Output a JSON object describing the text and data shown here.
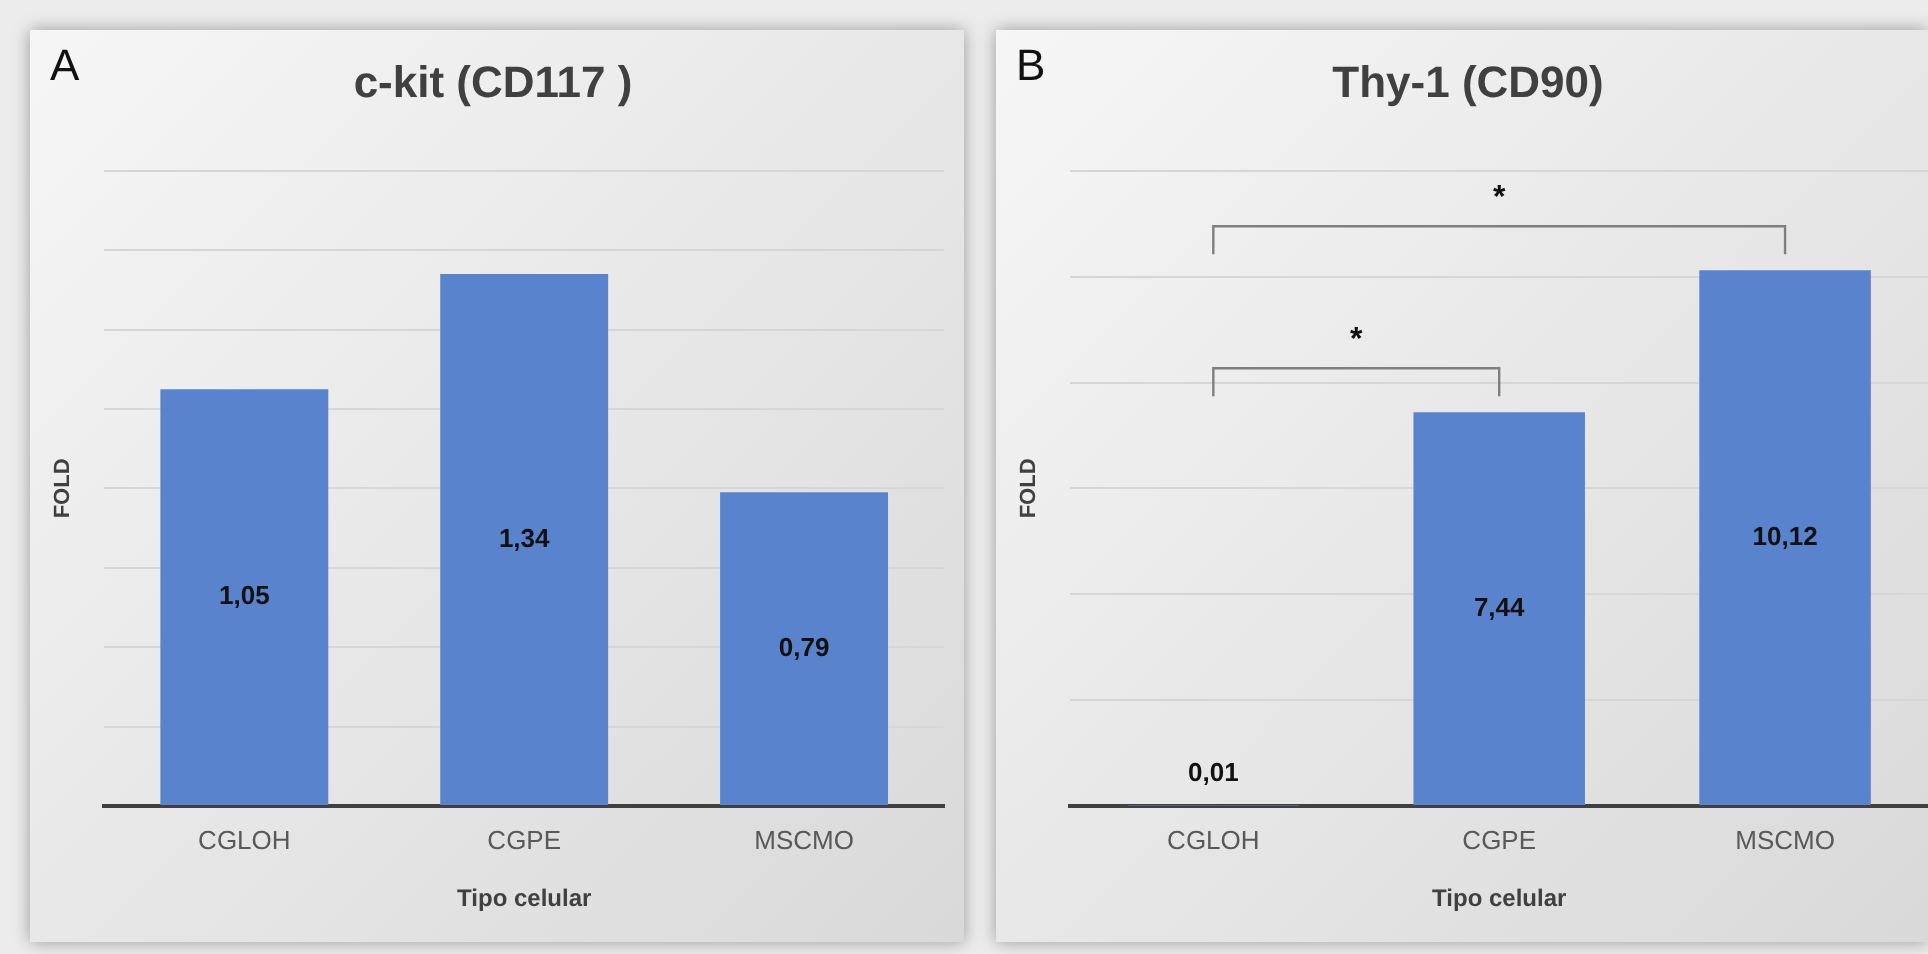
{
  "chart_data": [
    {
      "type": "bar",
      "title": "c-kit (CD117 )",
      "xlabel": "Tipo celular",
      "ylabel": "FOLD",
      "categories": [
        "CGLOH",
        "CGPE",
        "MSCMO"
      ],
      "values": [
        1.05,
        1.34,
        0.79
      ],
      "value_labels": [
        "1,05",
        "1,34",
        "0,79"
      ],
      "color": "#5a83cd",
      "ylim": [
        0,
        1.6
      ],
      "yticks": [
        0,
        {
          "value": 0.2,
          "label": null
        },
        {
          "value": 0.4,
          "label": null
        },
        {
          "value": 0.6,
          "label": null
        },
        {
          "value": 0.8,
          "label": null
        },
        {
          "value": 1,
          "label": null
        },
        {
          "value": 1.2,
          "label": null
        },
        {
          "value": 1.4,
          "label": null
        },
        {
          "value": 1.6,
          "label": null
        }
      ],
      "tick_labels": "x",
      "grid": "y",
      "annotations": [
        "A"
      ]
    },
    {
      "type": "bar",
      "title": "Thy-1 (CD90)",
      "xlabel": "Tipo celular",
      "ylabel": "FOLD",
      "categories": [
        "CGLOH",
        "CGPE",
        "MSCMO"
      ],
      "values": [
        0.01,
        7.44,
        10.12
      ],
      "value_labels": [
        "0,01",
        "7,44",
        "10,12"
      ],
      "color": "#5a83cd",
      "ylim": [
        0,
        12
      ],
      "yticks": [
        0,
        {
          "value": 2,
          "label": null
        },
        {
          "value": 4,
          "label": null
        },
        {
          "value": 6,
          "label": null
        },
        {
          "value": 8,
          "label": null
        },
        {
          "value": 10,
          "label": null
        },
        {
          "value": 12,
          "label": null
        }
      ],
      "tick_labels": "x",
      "grid": "y",
      "annotations": [
        "B",
        "*",
        "*"
      ]
    }
  ]
}
